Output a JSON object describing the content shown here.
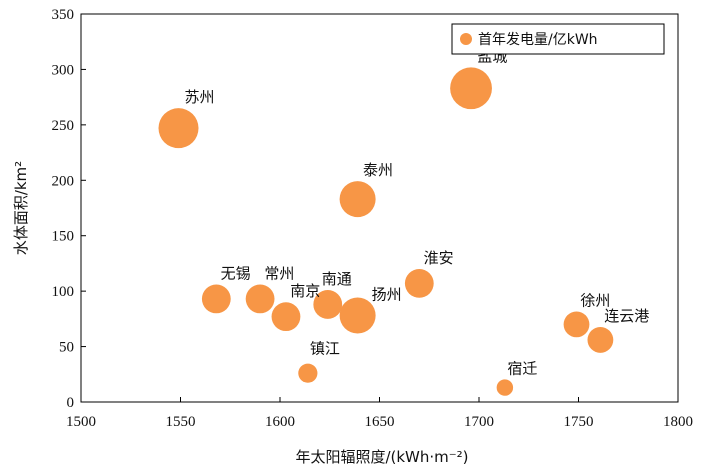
{
  "chart_data": {
    "type": "scatter",
    "title": "",
    "xlabel": "年太阳辐照度/(kWh·m⁻²)",
    "ylabel": "水体面积/km²",
    "xlim": [
      1500,
      1800
    ],
    "ylim": [
      0,
      350
    ],
    "xticks": [
      1500,
      1550,
      1600,
      1650,
      1700,
      1750,
      1800
    ],
    "yticks": [
      0,
      50,
      100,
      150,
      200,
      250,
      300,
      350
    ],
    "legend": {
      "label": "首年发电量/亿kWh",
      "position": "top-right"
    },
    "color": "#F79646",
    "series": [
      {
        "name": "首年发电量/亿kWh",
        "points": [
          {
            "city": "苏州",
            "x": 1549,
            "y": 247,
            "size": 9
          },
          {
            "city": "盐城",
            "x": 1696,
            "y": 283,
            "size": 10
          },
          {
            "city": "泰州",
            "x": 1639,
            "y": 183,
            "size": 7
          },
          {
            "city": "无锡",
            "x": 1568,
            "y": 93,
            "size": 4
          },
          {
            "city": "常州",
            "x": 1590,
            "y": 93,
            "size": 4
          },
          {
            "city": "南京",
            "x": 1603,
            "y": 77,
            "size": 4
          },
          {
            "city": "南通",
            "x": 1624,
            "y": 88,
            "size": 4
          },
          {
            "city": "扬州",
            "x": 1639,
            "y": 78,
            "size": 7
          },
          {
            "city": "淮安",
            "x": 1670,
            "y": 107,
            "size": 4
          },
          {
            "city": "镇江",
            "x": 1614,
            "y": 26,
            "size": 1.3
          },
          {
            "city": "宿迁",
            "x": 1713,
            "y": 13,
            "size": 0.8
          },
          {
            "city": "徐州",
            "x": 1749,
            "y": 70,
            "size": 3
          },
          {
            "city": "连云港",
            "x": 1761,
            "y": 56,
            "size": 3
          }
        ]
      }
    ]
  }
}
